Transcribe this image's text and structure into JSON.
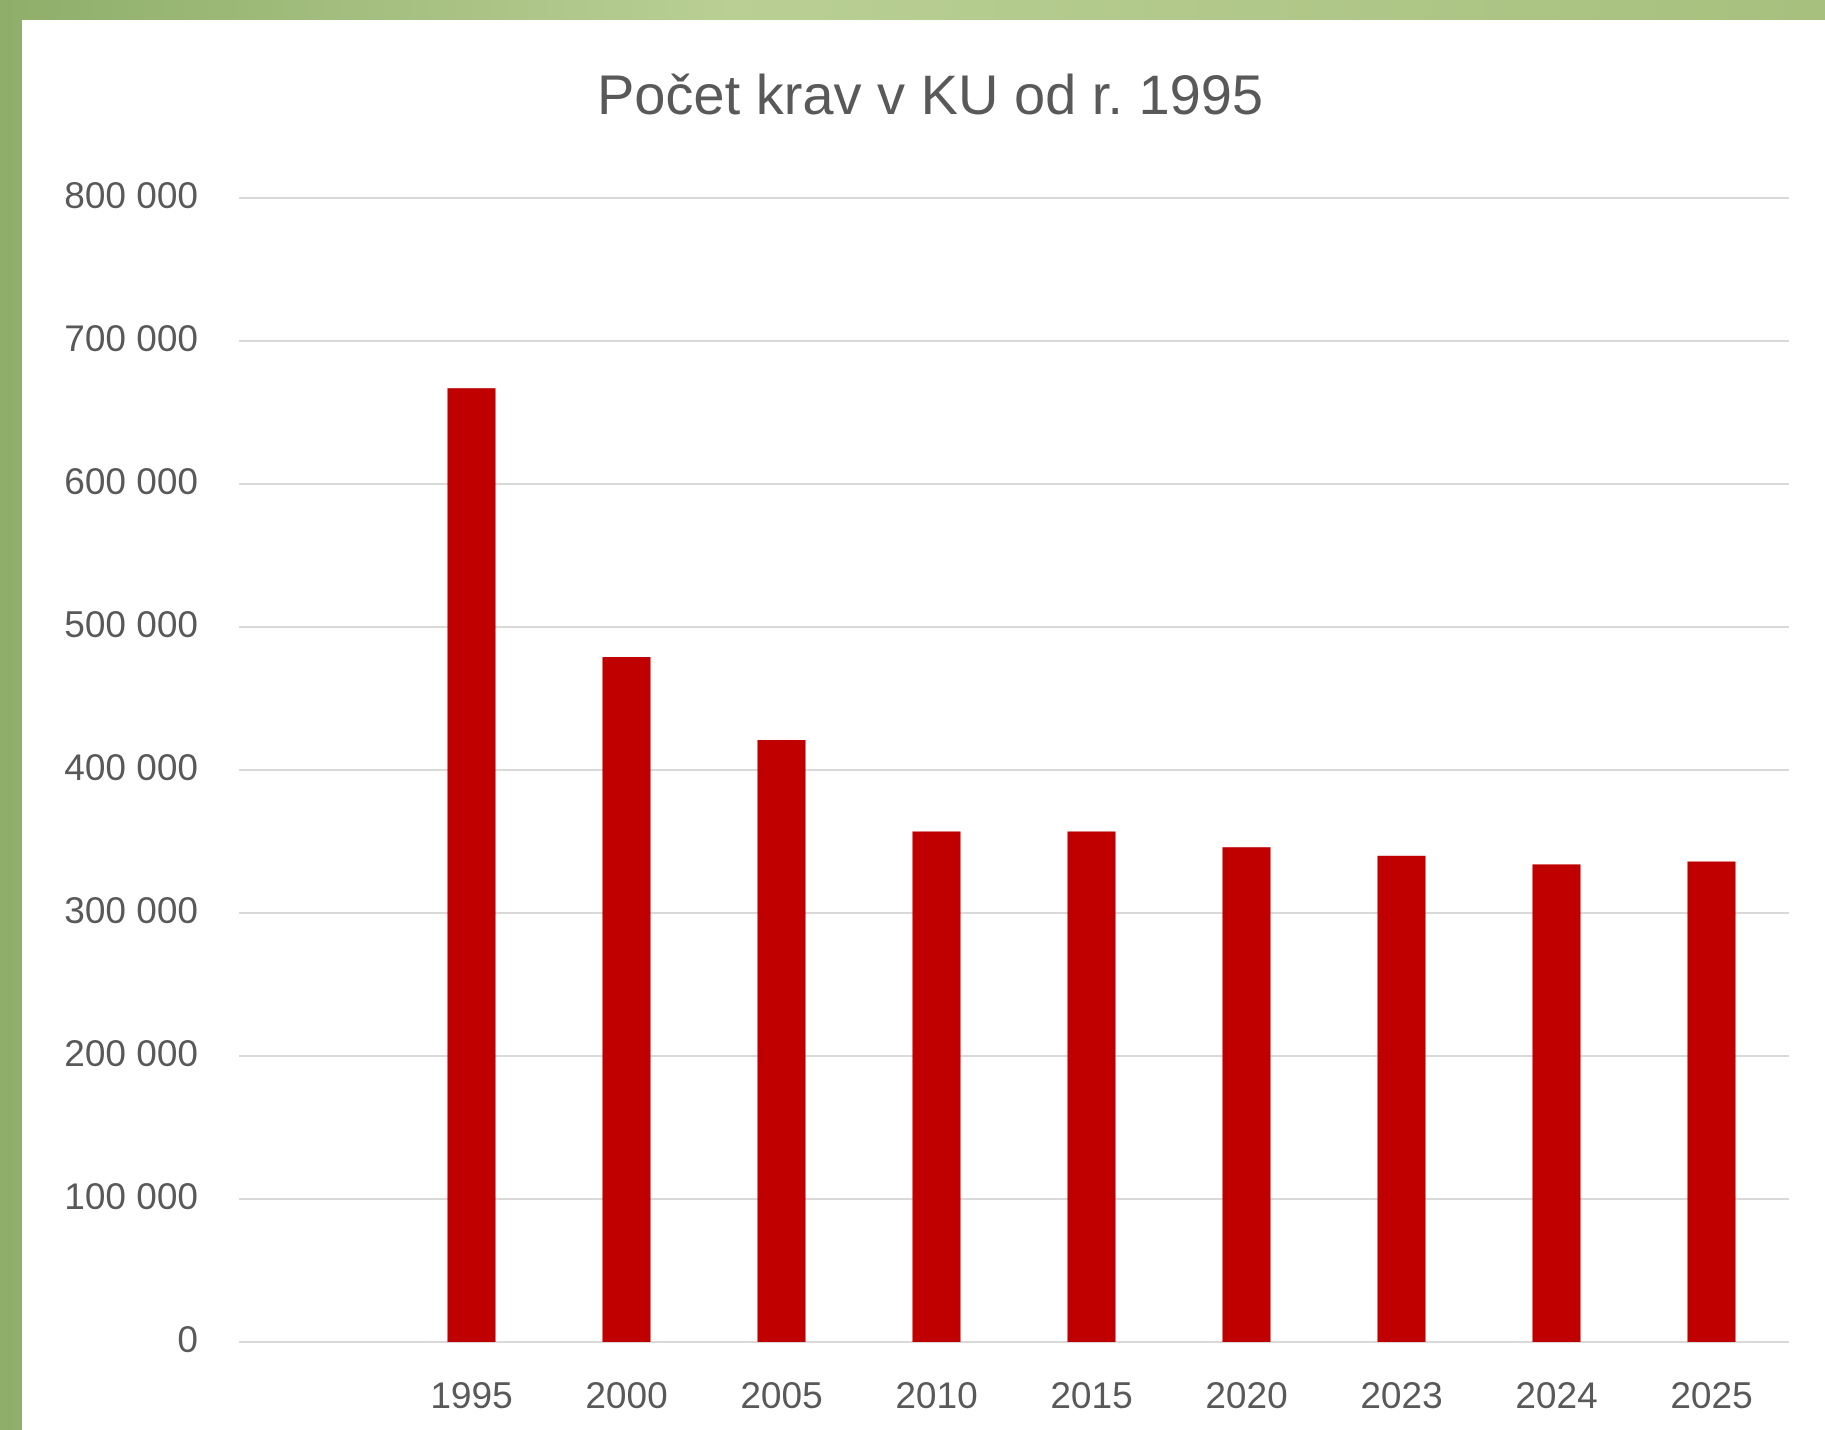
{
  "chart_data": {
    "type": "bar",
    "title": "Počet krav v KU od r. 1995",
    "categories": [
      null,
      "1995",
      "2000",
      "2005",
      "2010",
      "2015",
      "2020",
      "2023",
      "2024",
      "2025"
    ],
    "values": [
      null,
      667000,
      479000,
      421000,
      357000,
      357000,
      346000,
      340000,
      334000,
      336000
    ],
    "color": "#c00000",
    "ylim": [
      0,
      800000
    ],
    "yticks": [
      0,
      {
        "value": 100000,
        "label": "100 000"
      },
      {
        "value": 200000,
        "label": "200 000"
      },
      {
        "value": 300000,
        "label": "300 000"
      },
      {
        "value": 400000,
        "label": "400 000"
      },
      {
        "value": 500000,
        "label": "500 000"
      },
      {
        "value": 600000,
        "label": "600 000"
      },
      {
        "value": 700000,
        "label": "700 000"
      },
      {
        "value": 800000,
        "label": "800 000"
      }
    ],
    "grid": true
  }
}
